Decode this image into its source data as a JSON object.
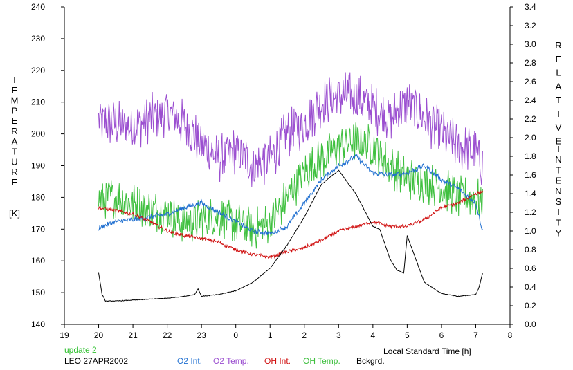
{
  "chart_data": {
    "type": "line",
    "xlabel": "Local Standard Time [h]",
    "x_ticks": [
      "19",
      "20",
      "21",
      "22",
      "23",
      "0",
      "1",
      "2",
      "3",
      "4",
      "5",
      "6",
      "7",
      "8"
    ],
    "y_left": {
      "label_letters": [
        "T",
        "E",
        "M",
        "P",
        "E",
        "R",
        "A",
        "T",
        "U",
        "R",
        "E"
      ],
      "unit": "[K]",
      "ylim": [
        140,
        240
      ],
      "ticks": [
        "140",
        "150",
        "160",
        "170",
        "180",
        "190",
        "200",
        "210",
        "220",
        "230",
        "240"
      ]
    },
    "y_right": {
      "label_word1": [
        "R",
        "E",
        "L",
        "A",
        "T",
        "I",
        "V",
        "E"
      ],
      "label_word2": [
        "I",
        "N",
        "T",
        "E",
        "N",
        "S",
        "I",
        "T",
        "Y"
      ],
      "ylim": [
        0.0,
        3.4
      ],
      "ticks": [
        "0.0",
        "0.2",
        "0.4",
        "0.6",
        "0.8",
        "1.0",
        "1.2",
        "1.4",
        "1.6",
        "1.8",
        "2.0",
        "2.2",
        "2.4",
        "2.6",
        "2.8",
        "3.0",
        "3.2",
        "3.4"
      ]
    },
    "update_note": "update 2",
    "site_date": "LEO 27APR2002",
    "series": [
      {
        "name": "O2 Int.",
        "axis": "right",
        "color": "#1f6fd0",
        "noise": 0.03,
        "x": [
          20.0,
          20.5,
          21.0,
          21.5,
          22.0,
          22.5,
          23.0,
          23.5,
          24.0,
          24.5,
          25.0,
          25.5,
          26.0,
          26.5,
          27.0,
          27.5,
          28.0,
          28.5,
          29.0,
          29.5,
          30.0,
          30.5,
          31.0,
          31.2
        ],
        "y": [
          1.03,
          1.1,
          1.12,
          1.15,
          1.18,
          1.25,
          1.3,
          1.2,
          1.1,
          1.0,
          0.97,
          1.05,
          1.3,
          1.55,
          1.7,
          1.8,
          1.62,
          1.6,
          1.62,
          1.7,
          1.55,
          1.45,
          1.3,
          1.0
        ]
      },
      {
        "name": "O2 Temp.",
        "axis": "left",
        "color": "#9b4fd0",
        "noise": 8,
        "x": [
          20.0,
          20.5,
          21.0,
          21.5,
          22.0,
          22.5,
          23.0,
          23.5,
          24.0,
          24.5,
          25.0,
          25.5,
          26.0,
          26.5,
          27.0,
          27.5,
          28.0,
          28.5,
          29.0,
          29.5,
          30.0,
          30.5,
          31.0,
          31.2
        ],
        "y": [
          204,
          203,
          202,
          205,
          207,
          203,
          197,
          192,
          195,
          190,
          192,
          200,
          203,
          210,
          212,
          212,
          208,
          205,
          210,
          205,
          200,
          196,
          194,
          190
        ]
      },
      {
        "name": "OH Int.",
        "axis": "right",
        "color": "#d01010",
        "noise": 0.02,
        "x": [
          20.0,
          20.5,
          21.0,
          21.5,
          22.0,
          22.5,
          23.0,
          23.5,
          24.0,
          24.5,
          25.0,
          25.5,
          26.0,
          26.5,
          27.0,
          27.5,
          28.0,
          28.5,
          29.0,
          29.5,
          30.0,
          30.5,
          31.0,
          31.2
        ],
        "y": [
          1.25,
          1.22,
          1.18,
          1.1,
          1.0,
          0.95,
          0.92,
          0.88,
          0.8,
          0.75,
          0.72,
          0.78,
          0.82,
          0.9,
          1.0,
          1.05,
          1.1,
          1.05,
          1.05,
          1.12,
          1.25,
          1.3,
          1.4,
          1.42
        ]
      },
      {
        "name": "OH Temp.",
        "axis": "left",
        "color": "#40c040",
        "noise": 7,
        "x": [
          20.0,
          20.5,
          21.0,
          21.5,
          22.0,
          22.5,
          23.0,
          23.5,
          24.0,
          24.5,
          25.0,
          25.5,
          26.0,
          26.5,
          27.0,
          27.5,
          28.0,
          28.5,
          29.0,
          29.5,
          30.0,
          30.5,
          31.0,
          31.2
        ],
        "y": [
          180,
          180,
          178,
          176,
          175,
          172,
          173,
          174,
          172,
          170,
          172,
          180,
          188,
          192,
          196,
          198,
          196,
          190,
          186,
          185,
          183,
          180,
          180,
          178
        ]
      },
      {
        "name": "Bckgrd.",
        "axis": "right",
        "color": "#000000",
        "noise": 0.004,
        "x": [
          20.0,
          20.1,
          20.2,
          20.5,
          21.0,
          21.5,
          22.0,
          22.5,
          22.8,
          22.9,
          23.0,
          23.5,
          24.0,
          24.5,
          25.0,
          25.5,
          26.0,
          26.5,
          27.0,
          27.5,
          28.0,
          28.2,
          28.5,
          28.7,
          28.9,
          29.0,
          29.1,
          29.5,
          30.0,
          30.5,
          31.0,
          31.1,
          31.2
        ],
        "y": [
          0.55,
          0.32,
          0.25,
          0.25,
          0.26,
          0.27,
          0.28,
          0.3,
          0.32,
          0.38,
          0.3,
          0.32,
          0.36,
          0.45,
          0.6,
          0.85,
          1.15,
          1.5,
          1.65,
          1.4,
          1.05,
          1.02,
          0.7,
          0.58,
          0.55,
          0.95,
          0.85,
          0.45,
          0.33,
          0.3,
          0.32,
          0.4,
          0.55
        ]
      }
    ]
  }
}
